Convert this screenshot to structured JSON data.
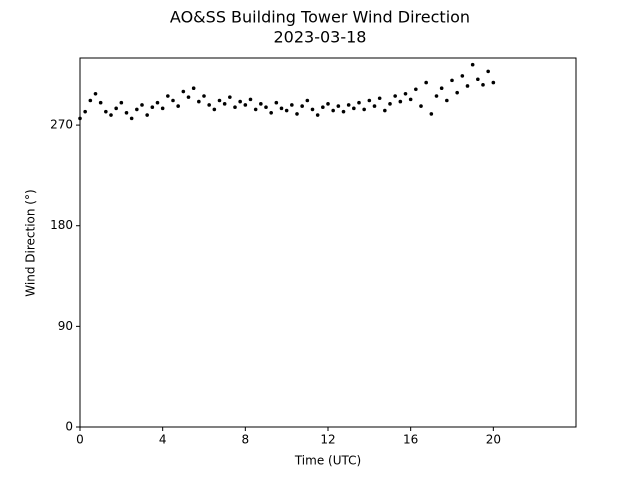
{
  "chart_data": {
    "type": "scatter",
    "title": "AO&SS Building Tower Wind Direction",
    "subtitle": "2023-03-18",
    "x_label": "Time (UTC)",
    "y_label": "Wind Direction (°)",
    "color": "#000000",
    "xlim": [
      0,
      24
    ],
    "xticks": [
      0,
      4,
      8,
      12,
      16,
      20
    ],
    "ylim": [
      0,
      330
    ],
    "yticks": [
      0,
      90,
      180,
      270
    ],
    "x": [
      0,
      0.25,
      0.5,
      0.75,
      1,
      1.25,
      1.5,
      1.75,
      2,
      2.25,
      2.5,
      2.75,
      3,
      3.25,
      3.5,
      3.75,
      4,
      4.25,
      4.5,
      4.75,
      5,
      5.25,
      5.5,
      5.75,
      6,
      6.25,
      6.5,
      6.75,
      7,
      7.25,
      7.5,
      7.75,
      8,
      8.25,
      8.5,
      8.75,
      9,
      9.25,
      9.5,
      9.75,
      10,
      10.25,
      10.5,
      10.75,
      11,
      11.25,
      11.5,
      11.75,
      12,
      12.25,
      12.5,
      12.75,
      13,
      13.25,
      13.5,
      13.75,
      14,
      14.25,
      14.5,
      14.75,
      15,
      15.25,
      15.5,
      15.75,
      16,
      16.25,
      16.5,
      16.75,
      17,
      17.25,
      17.5,
      17.75,
      18,
      18.25,
      18.5,
      18.75,
      19,
      19.25,
      19.5,
      19.75,
      20
    ],
    "values": [
      276,
      282,
      292,
      298,
      290,
      282,
      279,
      285,
      290,
      281,
      276,
      284,
      288,
      279,
      286,
      290,
      285,
      296,
      292,
      287,
      300,
      295,
      303,
      291,
      296,
      288,
      284,
      292,
      289,
      295,
      286,
      291,
      288,
      293,
      284,
      289,
      286,
      281,
      290,
      285,
      283,
      288,
      280,
      287,
      292,
      284,
      279,
      286,
      289,
      283,
      287,
      282,
      288,
      285,
      290,
      284,
      292,
      287,
      294,
      283,
      289,
      296,
      291,
      298,
      293,
      302,
      287,
      308,
      280,
      296,
      303,
      292,
      310,
      299,
      314,
      305,
      324,
      311,
      306,
      318,
      308
    ]
  }
}
